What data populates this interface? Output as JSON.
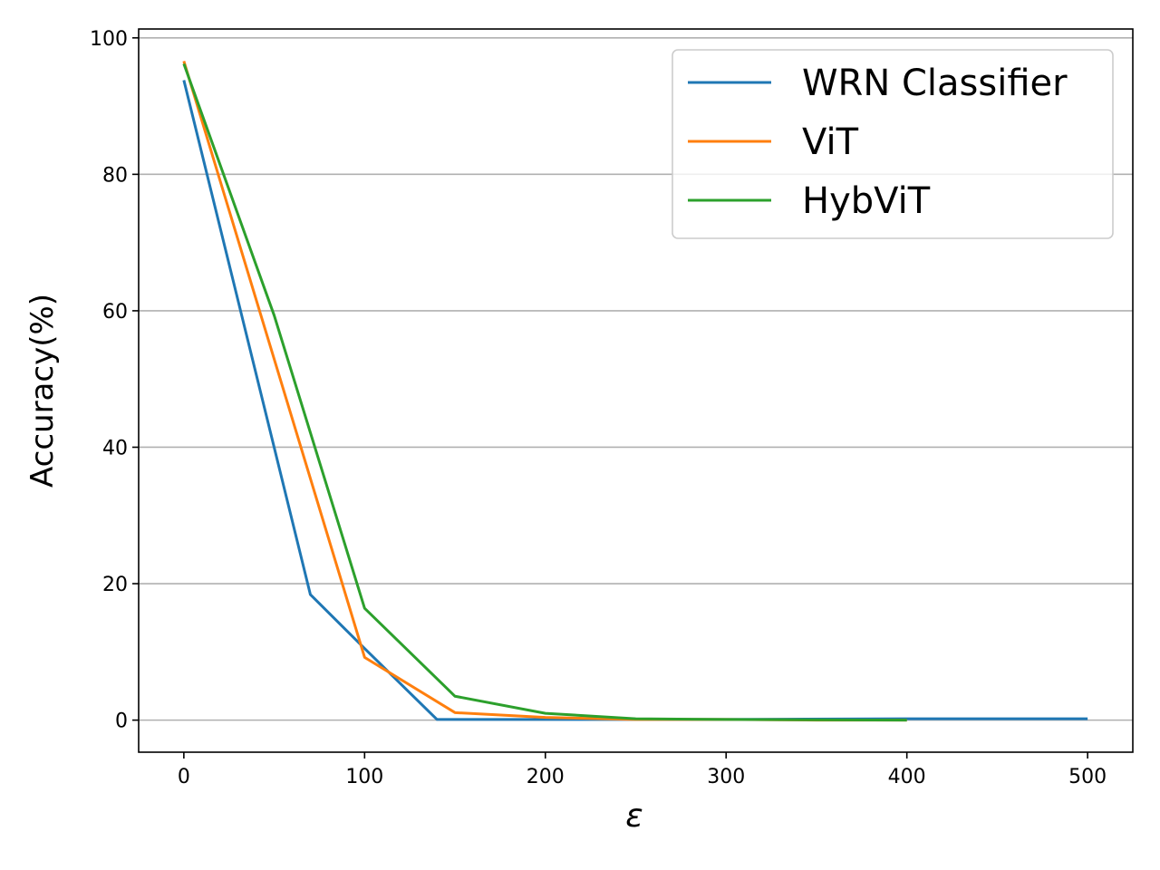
{
  "chart_data": {
    "type": "line",
    "xlabel": "ε",
    "ylabel": "Accuracy(%)",
    "xlim": [
      -25,
      525
    ],
    "ylim": [
      -4.7,
      101.3
    ],
    "xticks": [
      0,
      100,
      200,
      300,
      400,
      500
    ],
    "yticks": [
      0,
      20,
      40,
      60,
      80,
      100
    ],
    "grid": "y",
    "legend": "upper right",
    "series": [
      {
        "name": "WRN Classifier",
        "color": "#1f77b4",
        "x": [
          0,
          70,
          100,
          140,
          200,
          300,
          400,
          500
        ],
        "values": [
          93.8,
          18.4,
          10.5,
          0.1,
          0.1,
          0.1,
          0.2,
          0.2
        ]
      },
      {
        "name": "ViT",
        "color": "#ff7f0e",
        "x": [
          0,
          100,
          150,
          200,
          250,
          300,
          350,
          400
        ],
        "values": [
          96.6,
          9.2,
          1.1,
          0.4,
          0.1,
          0.1,
          0.0,
          0.0
        ]
      },
      {
        "name": "HybViT",
        "color": "#2ca02c",
        "x": [
          0,
          50,
          100,
          150,
          200,
          250,
          300,
          400
        ],
        "values": [
          96.2,
          59.3,
          16.4,
          3.5,
          1.0,
          0.2,
          0.1,
          0.0
        ]
      }
    ]
  }
}
